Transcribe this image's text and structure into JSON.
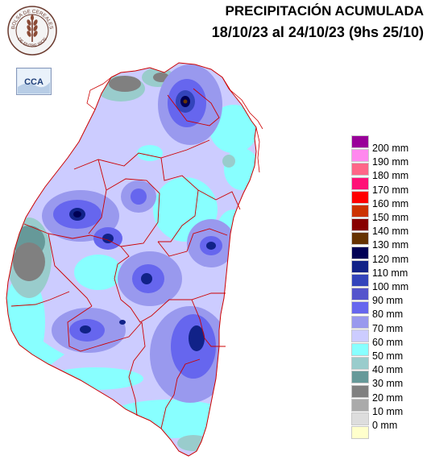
{
  "header": {
    "title": "PRECIPITACIÓN ACUMULADA",
    "subtitle": "18/10/23 al 24/10/23 (9hs 25/10)"
  },
  "logos": {
    "seal_top": "BOLSA DE CEREALES",
    "seal_bottom": "DE ENTRE RIOS",
    "badge": "CCA"
  },
  "legend": {
    "items": [
      {
        "label": "200 mm",
        "color": "#990099"
      },
      {
        "label": "190 mm",
        "color": "#ff88ee"
      },
      {
        "label": "180 mm",
        "color": "#ff6688"
      },
      {
        "label": "170 mm",
        "color": "#ff1177"
      },
      {
        "label": "160 mm",
        "color": "#ff0000"
      },
      {
        "label": "150 mm",
        "color": "#cc3300"
      },
      {
        "label": "140 mm",
        "color": "#880000"
      },
      {
        "label": "130 mm",
        "color": "#663300"
      },
      {
        "label": "120 mm",
        "color": "#000055"
      },
      {
        "label": "110 mm",
        "color": "#112288"
      },
      {
        "label": "100 mm",
        "color": "#3344bb"
      },
      {
        "label": "90 mm",
        "color": "#5555cc"
      },
      {
        "label": "80 mm",
        "color": "#6666ee"
      },
      {
        "label": "70 mm",
        "color": "#9999ee"
      },
      {
        "label": "60 mm",
        "color": "#ccccff"
      },
      {
        "label": "50 mm",
        "color": "#88ffff"
      },
      {
        "label": "40 mm",
        "color": "#99cccc"
      },
      {
        "label": "30 mm",
        "color": "#669999"
      },
      {
        "label": "20 mm",
        "color": "#808080"
      },
      {
        "label": "10 mm",
        "color": "#aaaaaa"
      },
      {
        "label": "0 mm",
        "color": "#dddddd"
      },
      {
        "label": "",
        "color": "#ffffcc"
      }
    ]
  }
}
